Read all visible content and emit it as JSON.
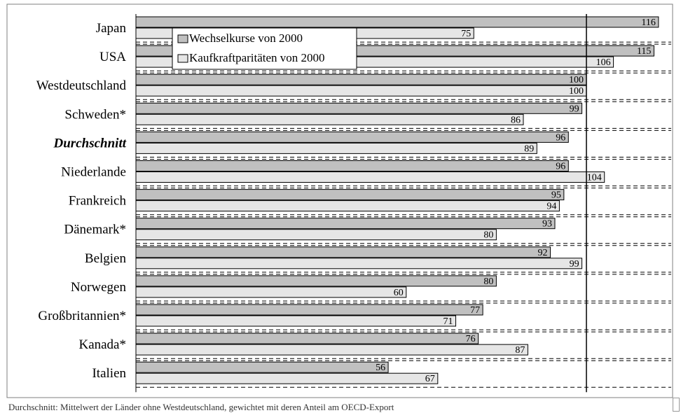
{
  "chart_data": {
    "type": "bar",
    "orientation": "horizontal",
    "categories": [
      "Japan",
      "USA",
      "Westdeutschland",
      "Schweden*",
      "Durchschnitt",
      "Niederlande",
      "Frankreich",
      "Dänemark*",
      "Belgien",
      "Norwegen",
      "Großbritannien*",
      "Kanada*",
      "Italien"
    ],
    "highlight_category": "Durchschnitt",
    "series": [
      {
        "name": "Wechselkurse von 2000",
        "color": "#c0c0c0",
        "values": [
          116,
          115,
          100,
          99,
          96,
          96,
          95,
          93,
          92,
          80,
          77,
          76,
          56
        ]
      },
      {
        "name": "Kaufkraftparitäten von 2000",
        "color": "#e6e6e6",
        "values": [
          75,
          106,
          100,
          86,
          89,
          104,
          94,
          80,
          99,
          60,
          71,
          87,
          67
        ]
      }
    ],
    "reference_value": 100,
    "xlim": [
      0,
      120
    ],
    "legend_position": "top-left",
    "grid": "dashed horizontal separators"
  },
  "footnote": "Durchschnitt: Mittelwert der Länder ohne Westdeutschland, gewichtet mit deren Anteil am OECD-Export"
}
